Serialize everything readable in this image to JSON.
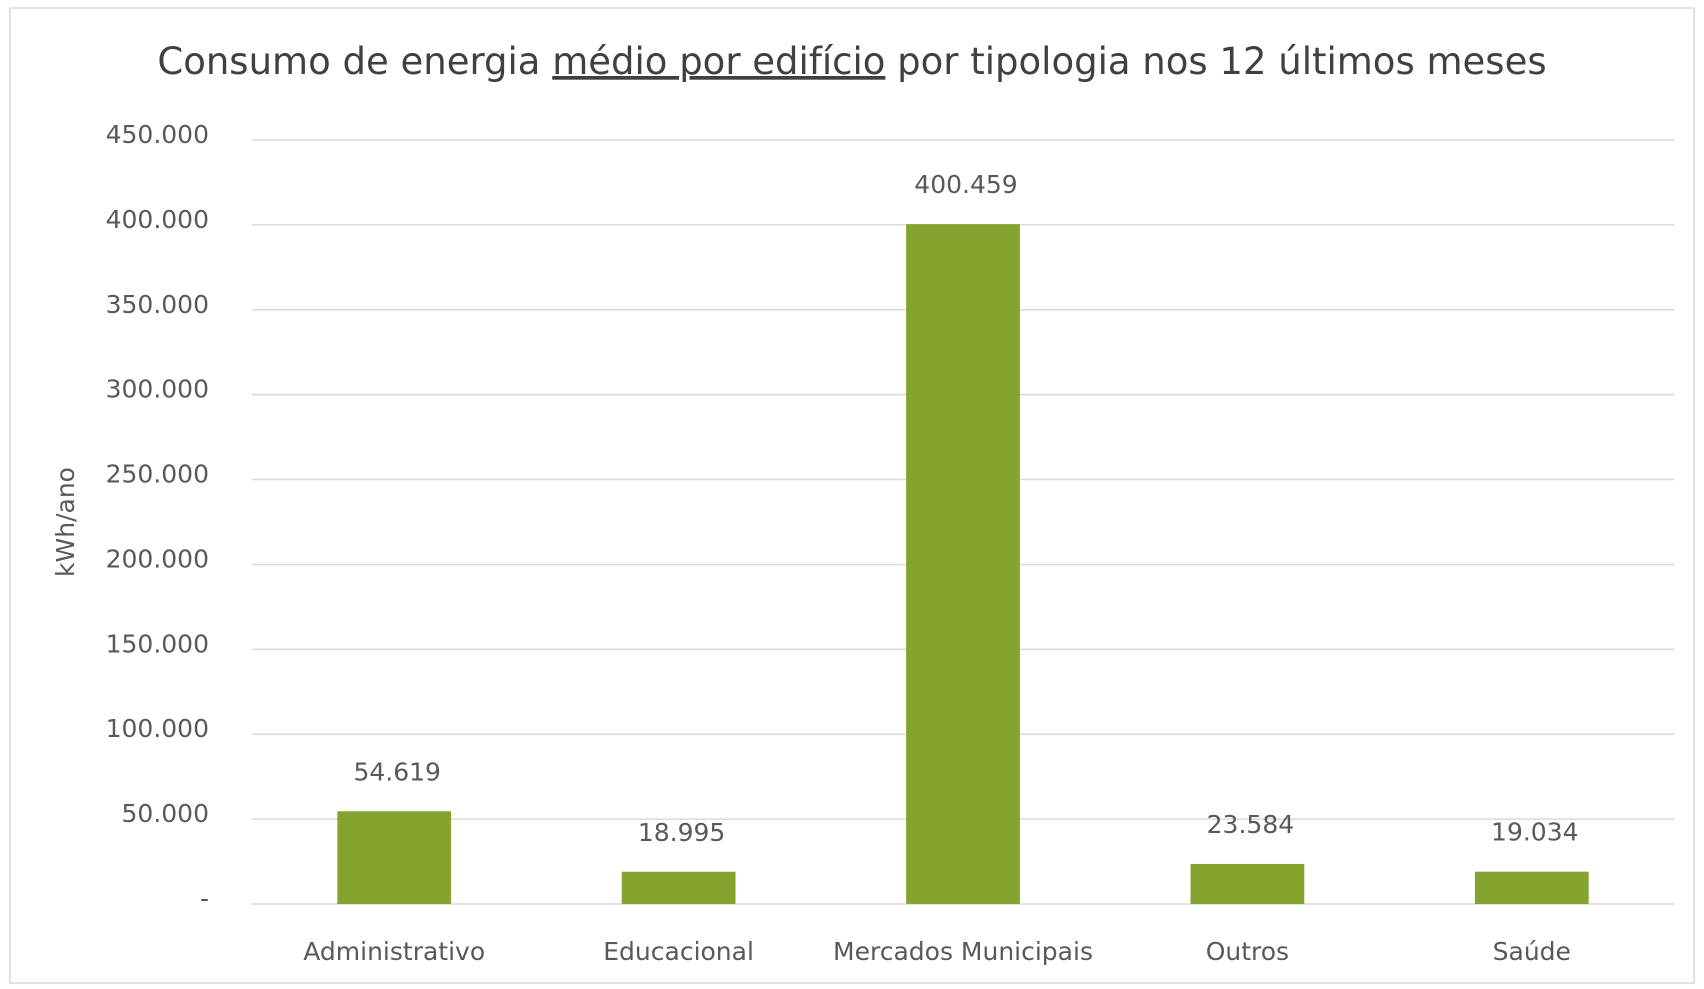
{
  "chart_data": {
    "type": "bar",
    "title": [
      "Consumo de energia ",
      "médio por edifício",
      " por tipologia nos 12 últimos meses"
    ],
    "ylabel": "kWh/ano",
    "categories": [
      "Administrativo",
      "Educacional",
      "Mercados Municipais",
      "Outros",
      "Saúde"
    ],
    "values": [
      54619,
      18995,
      400459,
      23584,
      19034
    ],
    "value_labels": [
      "54.619",
      "18.995",
      "400.459",
      "23.584",
      "19.034"
    ],
    "color": "#84a42f",
    "ylim": [
      0,
      450000
    ],
    "yticks": [
      {
        "value": 0,
        "label": "-"
      },
      {
        "value": 50000,
        "label": "50.000"
      },
      {
        "value": 100000,
        "label": "100.000"
      },
      {
        "value": 150000,
        "label": "150.000"
      },
      {
        "value": 200000,
        "label": "200.000"
      },
      {
        "value": 250000,
        "label": "250.000"
      },
      {
        "value": 300000,
        "label": "300.000"
      },
      {
        "value": 350000,
        "label": "350.000"
      },
      {
        "value": 400000,
        "label": "400.000"
      },
      {
        "value": 450000,
        "label": "450.000"
      }
    ],
    "grid": true
  }
}
